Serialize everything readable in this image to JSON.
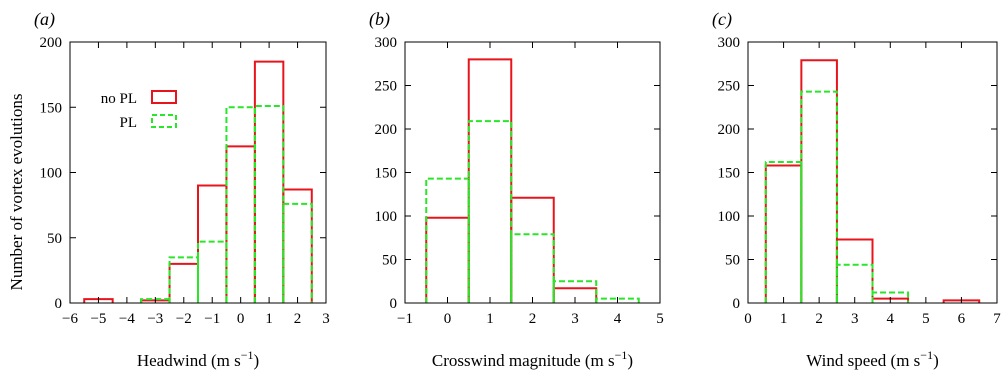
{
  "shared_ylabel": "Number of vortex evolutions",
  "series_style": {
    "no_pl": {
      "color": "#e8141c",
      "dashed": false
    },
    "pl": {
      "color": "#28e628",
      "dashed": true
    }
  },
  "chart_data": [
    {
      "type": "bar",
      "panel_label": "(a)",
      "xlabel_main": "Headwind (m s",
      "xlabel_sup": "−1",
      "xlabel_end": ")",
      "xlim": [
        -6,
        3
      ],
      "ylim": [
        0,
        200
      ],
      "xticks": [
        -6,
        -5,
        -4,
        -3,
        -2,
        -1,
        0,
        1,
        2,
        3
      ],
      "xtick_labels": [
        "−6",
        "−5",
        "−4",
        "−3",
        "−2",
        "−1",
        "0",
        "1",
        "2",
        "3"
      ],
      "yticks": [
        0,
        50,
        100,
        150,
        200
      ],
      "ytick_labels": [
        "0",
        "50",
        "100",
        "150",
        "200"
      ],
      "bin_edges": [
        -5.5,
        -4.5,
        -3.5,
        -2.5,
        -1.5,
        -0.5,
        0.5,
        1.5,
        2.5
      ],
      "legend": {
        "placement": "top-left",
        "entries": [
          {
            "key": "no_pl",
            "label": "no PL"
          },
          {
            "key": "pl",
            "label": "PL"
          }
        ]
      },
      "series": [
        {
          "key": "no_pl",
          "values": [
            3,
            0,
            2,
            30,
            90,
            120,
            185,
            87
          ]
        },
        {
          "key": "pl",
          "values": [
            0,
            0,
            3,
            35,
            47,
            150,
            151,
            76
          ]
        }
      ]
    },
    {
      "type": "bar",
      "panel_label": "(b)",
      "xlabel_main": "Crosswind magnitude (m s",
      "xlabel_sup": "−1",
      "xlabel_end": ")",
      "xlim": [
        -1,
        5
      ],
      "ylim": [
        0,
        300
      ],
      "xticks": [
        -1,
        0,
        1,
        2,
        3,
        4,
        5
      ],
      "xtick_labels": [
        "−1",
        "0",
        "1",
        "2",
        "3",
        "4",
        "5"
      ],
      "yticks": [
        0,
        50,
        100,
        150,
        200,
        250,
        300
      ],
      "ytick_labels": [
        "0",
        "50",
        "100",
        "150",
        "200",
        "250",
        "300"
      ],
      "bin_edges": [
        -0.5,
        0.5,
        1.5,
        2.5,
        3.5,
        4.5
      ],
      "series": [
        {
          "key": "no_pl",
          "values": [
            98,
            280,
            121,
            17,
            0
          ]
        },
        {
          "key": "pl",
          "values": [
            143,
            209,
            79,
            25,
            5
          ]
        }
      ]
    },
    {
      "type": "bar",
      "panel_label": "(c)",
      "xlabel_main": "Wind speed (m s",
      "xlabel_sup": "−1",
      "xlabel_end": ")",
      "xlim": [
        0,
        7
      ],
      "ylim": [
        0,
        300
      ],
      "xticks": [
        0,
        1,
        2,
        3,
        4,
        5,
        6,
        7
      ],
      "xtick_labels": [
        "0",
        "1",
        "2",
        "3",
        "4",
        "5",
        "6",
        "7"
      ],
      "yticks": [
        0,
        50,
        100,
        150,
        200,
        250,
        300
      ],
      "ytick_labels": [
        "0",
        "50",
        "100",
        "150",
        "200",
        "250",
        "300"
      ],
      "bin_edges": [
        0.5,
        1.5,
        2.5,
        3.5,
        4.5,
        5.5,
        6.5
      ],
      "series": [
        {
          "key": "no_pl",
          "values": [
            158,
            279,
            73,
            5,
            0,
            3
          ]
        },
        {
          "key": "pl",
          "values": [
            162,
            243,
            44,
            12,
            0,
            0
          ]
        }
      ]
    }
  ]
}
